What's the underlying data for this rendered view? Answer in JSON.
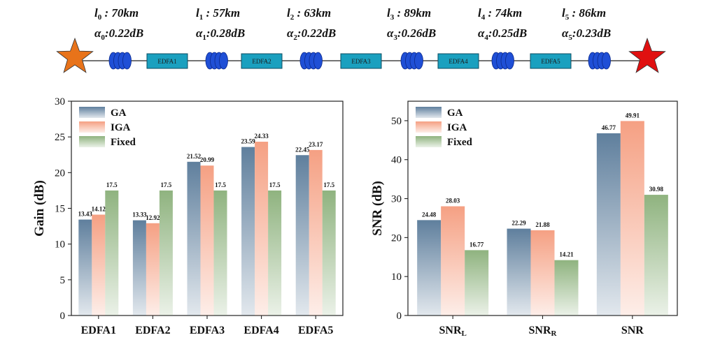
{
  "diagram": {
    "amplifiers": [
      "EDFA1",
      "EDFA2",
      "EDFA3",
      "EDFA4",
      "EDFA5"
    ],
    "spans": [
      {
        "l_sym": "l",
        "l_sub": "0",
        "l_val": " : 70km",
        "a_sym": "α",
        "a_sub": "0",
        "a_val": ":0.22dB"
      },
      {
        "l_sym": "l",
        "l_sub": "1",
        "l_val": " : 57km",
        "a_sym": "α",
        "a_sub": "1",
        "a_val": ":0.28dB"
      },
      {
        "l_sym": "l",
        "l_sub": "2",
        "l_val": " : 63km",
        "a_sym": "α",
        "a_sub": "2",
        "a_val": ":0.22dB"
      },
      {
        "l_sym": "l",
        "l_sub": "3",
        "l_val": " : 89km",
        "a_sym": "α",
        "a_sub": "3",
        "a_val": ":0.26dB"
      },
      {
        "l_sym": "l",
        "l_sub": "4",
        "l_val": " : 74km",
        "a_sym": "α",
        "a_sub": "4",
        "a_val": ":0.25dB"
      },
      {
        "l_sym": "l",
        "l_sub": "5",
        "l_val": " : 86km",
        "a_sym": "α",
        "a_sub": "5",
        "a_val": ":0.23dB"
      }
    ],
    "colors": {
      "start_star": "#e8731a",
      "end_star": "#e01010",
      "coil": "#1f4fd6",
      "amp_box": "#1aa0bf",
      "line": "#222222"
    }
  },
  "chart_data": [
    {
      "type": "bar",
      "categories": [
        "EDFA1",
        "EDFA2",
        "EDFA3",
        "EDFA4",
        "EDFA5"
      ],
      "series": [
        {
          "name": "GA",
          "values": [
            13.43,
            13.33,
            21.52,
            23.59,
            22.45
          ],
          "labels": [
            "13.43",
            "13.33",
            "21.52",
            "23.59",
            "22.45"
          ],
          "color": "#5f7f9d"
        },
        {
          "name": "IGA",
          "values": [
            14.12,
            12.92,
            20.99,
            24.33,
            23.17
          ],
          "labels": [
            "14.12",
            "12.92",
            "20.99",
            "24.33",
            "23.17"
          ],
          "color": "#f5a083"
        },
        {
          "name": "Fixed",
          "values": [
            17.5,
            17.5,
            17.5,
            17.5,
            17.5
          ],
          "labels": [
            "17.5",
            "17.5",
            "17.5",
            "17.5",
            "17.5"
          ],
          "color": "#8fb37f"
        }
      ],
      "ylabel": "Gain (dB)",
      "ylim": [
        0,
        30
      ],
      "yticks": [
        0,
        5,
        10,
        15,
        20,
        25,
        30
      ],
      "legend": "top-left",
      "grid": false
    },
    {
      "type": "bar",
      "categories": [
        {
          "main": "SNR",
          "sub": "L"
        },
        {
          "main": "SNR",
          "sub": "R"
        },
        {
          "main": "SNR",
          "sub": ""
        }
      ],
      "series": [
        {
          "name": "GA",
          "values": [
            24.48,
            22.29,
            46.77
          ],
          "labels": [
            "24.48",
            "22.29",
            "46.77"
          ],
          "color": "#5f7f9d"
        },
        {
          "name": "IGA",
          "values": [
            28.03,
            21.88,
            49.91
          ],
          "labels": [
            "28.03",
            "21.88",
            "49.91"
          ],
          "color": "#f5a083"
        },
        {
          "name": "Fixed",
          "values": [
            16.77,
            14.21,
            30.98
          ],
          "labels": [
            "16.77",
            "14.21",
            "30.98"
          ],
          "color": "#8fb37f"
        }
      ],
      "ylabel": "SNR (dB)",
      "ylim": [
        0,
        55
      ],
      "yticks": [
        0,
        10,
        20,
        30,
        40,
        50
      ],
      "legend": "top-left",
      "grid": false
    }
  ]
}
